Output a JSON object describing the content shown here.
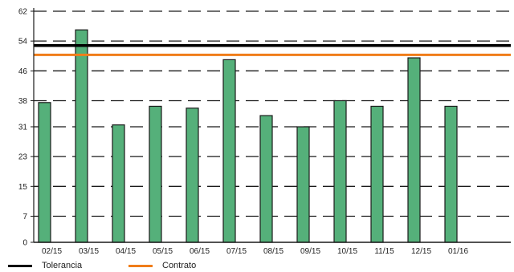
{
  "chart_data": {
    "type": "bar",
    "title": "",
    "xlabel": "",
    "ylabel": "",
    "categories": [
      "02/15",
      "03/15",
      "04/15",
      "05/15",
      "06/15",
      "07/15",
      "08/15",
      "09/15",
      "10/15",
      "11/15",
      "12/15",
      "01/16"
    ],
    "series": [
      {
        "values": [
          37.5,
          57,
          31.5,
          36.5,
          36,
          49,
          34,
          31,
          38,
          36.5,
          49.5,
          36.5
        ]
      }
    ],
    "reference_lines": [
      {
        "name": "Tolerancia",
        "value": 52.8
      },
      {
        "name": "Contrato",
        "value": 50.3
      }
    ],
    "yticks": [
      0,
      7,
      15,
      23,
      31,
      38,
      46,
      54,
      62
    ],
    "ylim": [
      0,
      62
    ],
    "grid": "dashed horizontal",
    "legend_position": "bottom-left",
    "colors": {
      "bar_fill": "#55b07a",
      "bar_stroke": "#1a1a1a",
      "tolerancia": "#000000",
      "contrato": "#f07d1a",
      "grid": "#1a1a1a"
    }
  },
  "legend": [
    {
      "label": "Tolerancia",
      "color": "#000000"
    },
    {
      "label": "Contrato",
      "color": "#f07d1a"
    }
  ]
}
